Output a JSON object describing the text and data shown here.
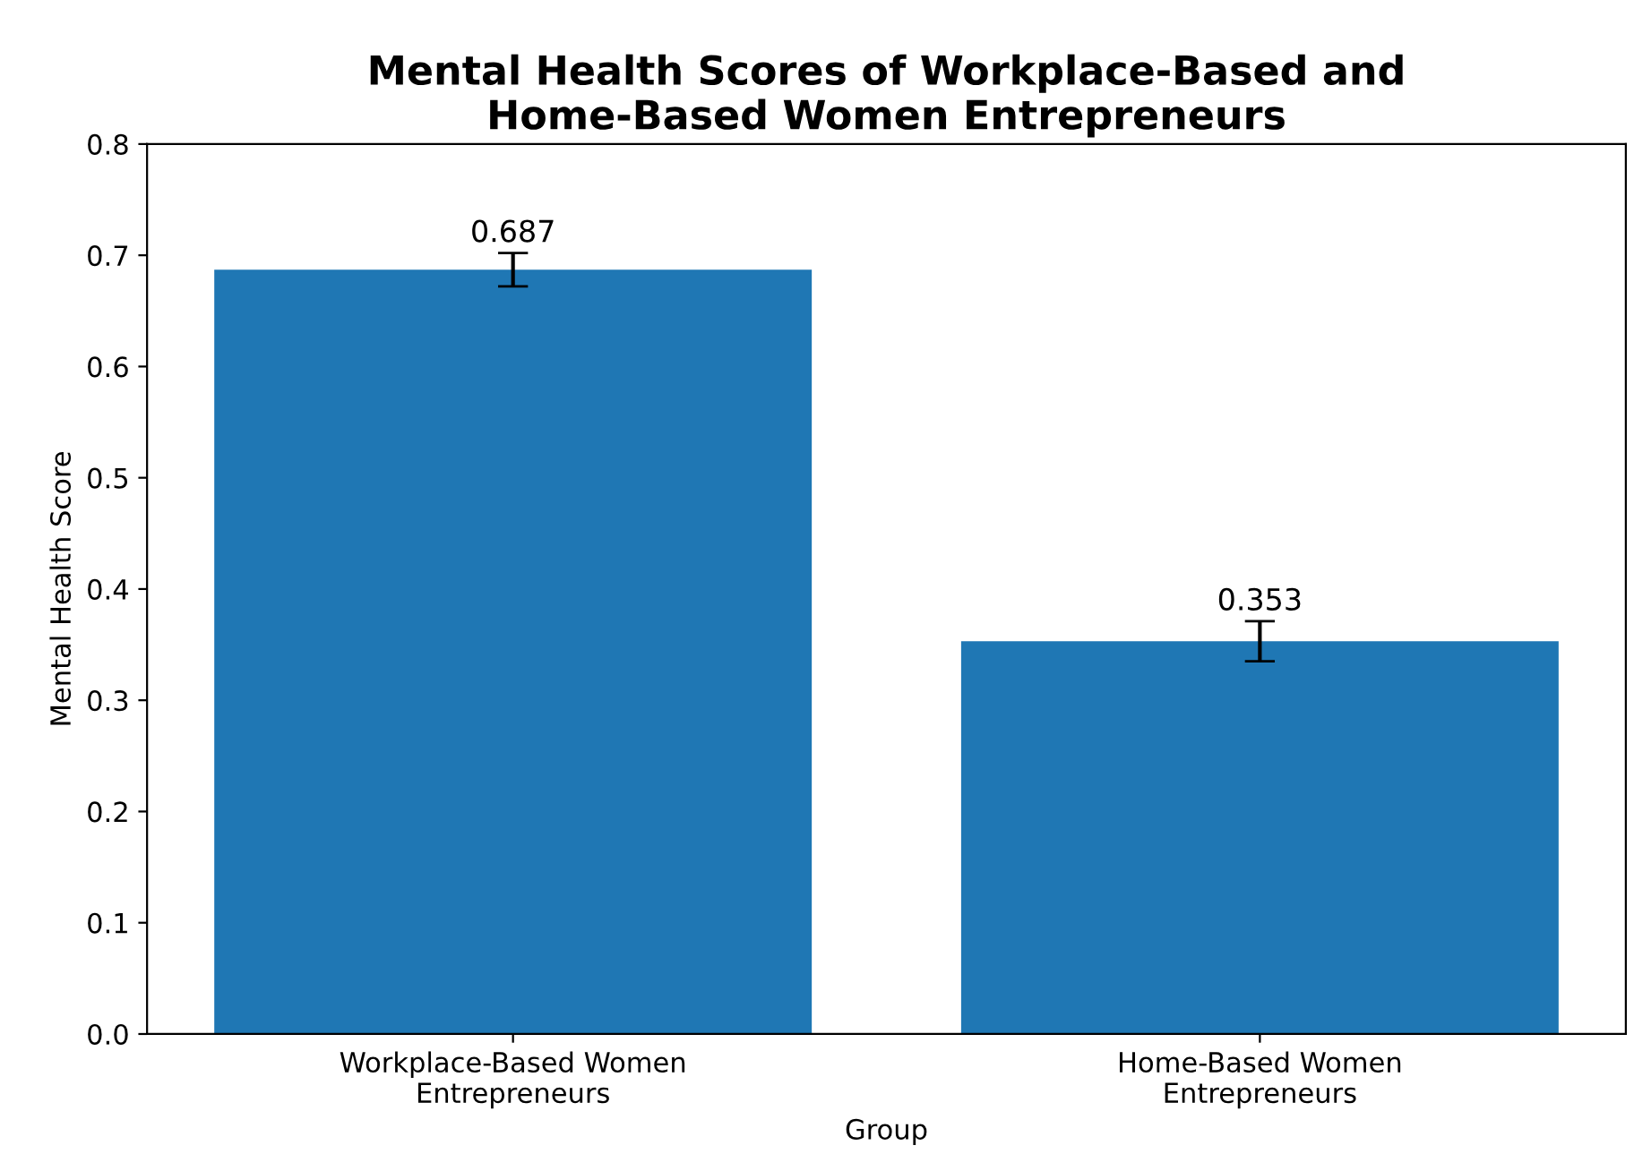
{
  "chart_data": {
    "type": "bar",
    "title": "Mental Health Scores of Workplace-Based and\nHome-Based Women Entrepreneurs",
    "xlabel": "Group",
    "ylabel": "Mental Health Score",
    "categories": [
      "Workplace-Based Women\nEntrepreneurs",
      "Home-Based Women\nEntrepreneurs"
    ],
    "values": [
      0.687,
      0.353
    ],
    "errors": [
      0.015,
      0.018
    ],
    "color": "#1f77b4",
    "ylim": [
      0,
      0.8
    ],
    "yticks": [
      {
        "value": 0,
        "label": "0.0"
      },
      0.1,
      0.2,
      0.3,
      0.4,
      0.5,
      0.6,
      0.7,
      0.8
    ],
    "data_labels": true,
    "grid": false
  }
}
